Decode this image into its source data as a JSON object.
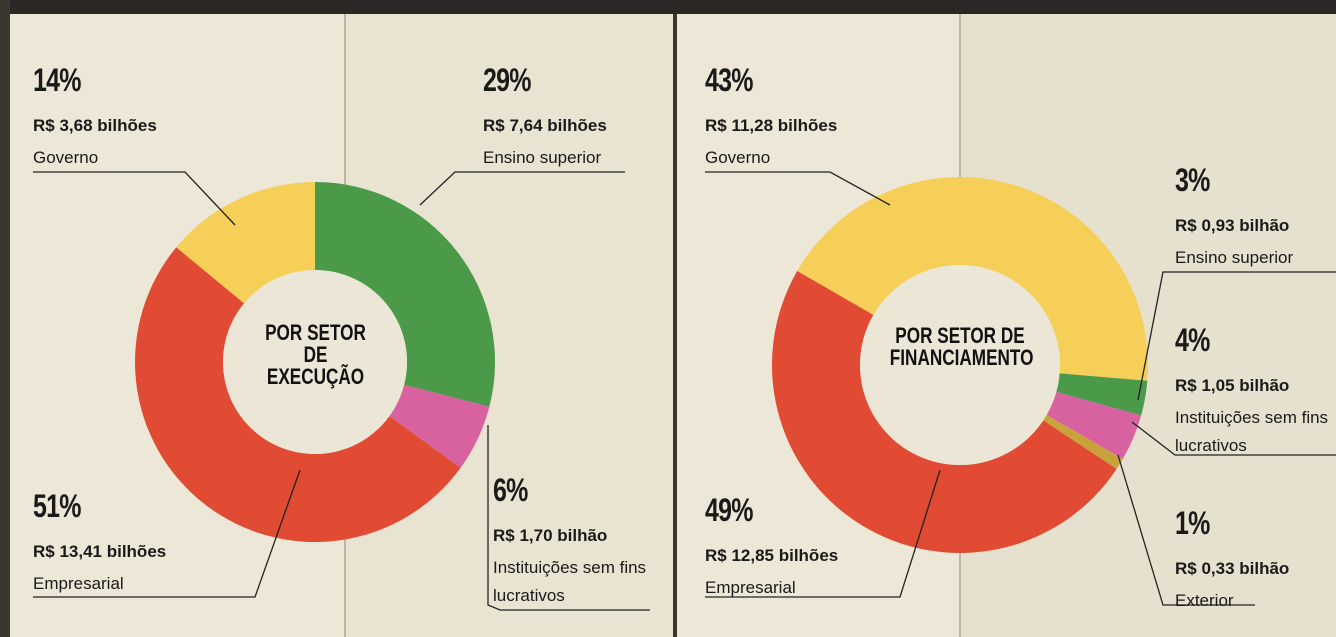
{
  "chart_data": [
    {
      "type": "pie",
      "title": "POR SETOR DE EXECUÇÃO",
      "categories": [
        "Ensino superior",
        "Instituições sem fins lucrativos",
        "Empresarial",
        "Governo"
      ],
      "values": [
        29,
        6,
        51,
        14
      ],
      "value_labels": [
        "29%",
        "6%",
        "51%",
        "14%"
      ],
      "amounts": [
        "R$ 7,64 bilhões",
        "R$ 1,70 bilhão",
        "R$ 13,41 bilhões",
        "R$ 3,68 bilhões"
      ],
      "colors": [
        "#4b9a49",
        "#d862a0",
        "#e24b33",
        "#f5cf57"
      ]
    },
    {
      "type": "pie",
      "title": "POR SETOR DE FINANCIAMENTO",
      "categories": [
        "Governo",
        "Ensino superior",
        "Instituições sem fins lucrativos",
        "Exterior",
        "Empresarial"
      ],
      "values": [
        43,
        3,
        4,
        1,
        49
      ],
      "value_labels": [
        "43%",
        "3%",
        "4%",
        "1%",
        "49%"
      ],
      "amounts": [
        "R$ 11,28 bilhões",
        "R$ 0,93 bilhão",
        "R$ 1,05 bilhão",
        "R$ 0,33 bilhão",
        "R$ 12,85 bilhões"
      ],
      "colors": [
        "#f5cf57",
        "#4b9a49",
        "#d862a0",
        "#c9a23c",
        "#e24b33"
      ]
    }
  ]
}
